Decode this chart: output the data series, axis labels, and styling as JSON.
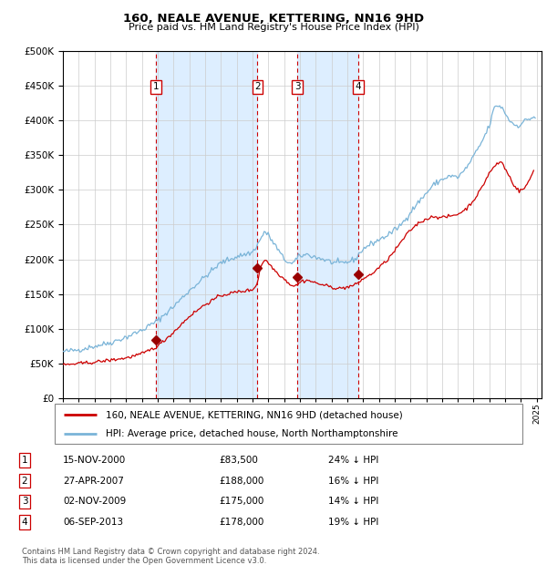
{
  "title": "160, NEALE AVENUE, KETTERING, NN16 9HD",
  "subtitle": "Price paid vs. HM Land Registry's House Price Index (HPI)",
  "legend_line1": "160, NEALE AVENUE, KETTERING, NN16 9HD (detached house)",
  "legend_line2": "HPI: Average price, detached house, North Northamptonshire",
  "footer_line1": "Contains HM Land Registry data © Crown copyright and database right 2024.",
  "footer_line2": "This data is licensed under the Open Government Licence v3.0.",
  "hpi_color": "#7ab4d8",
  "price_color": "#cc0000",
  "vline_color": "#cc0000",
  "bg_shade_color": "#ddeeff",
  "marker_color": "#990000",
  "table_entries": [
    {
      "num": 1,
      "date": "15-NOV-2000",
      "price": "£83,500",
      "pct": "24% ↓ HPI"
    },
    {
      "num": 2,
      "date": "27-APR-2007",
      "price": "£188,000",
      "pct": "16% ↓ HPI"
    },
    {
      "num": 3,
      "date": "02-NOV-2009",
      "price": "£175,000",
      "pct": "14% ↓ HPI"
    },
    {
      "num": 4,
      "date": "06-SEP-2013",
      "price": "£178,000",
      "pct": "19% ↓ HPI"
    }
  ],
  "sale_dates_decimal": [
    2000.875,
    2007.32,
    2009.84,
    2013.68
  ],
  "sale_prices": [
    83500,
    188000,
    175000,
    178000
  ],
  "ylim": [
    0,
    500000
  ],
  "yticks": [
    0,
    50000,
    100000,
    150000,
    200000,
    250000,
    300000,
    350000,
    400000,
    450000,
    500000
  ],
  "xlim_start": 1995.0,
  "xlim_end": 2025.3,
  "hpi_anchors": [
    [
      1995.0,
      67000
    ],
    [
      1996.0,
      70000
    ],
    [
      1997.0,
      75000
    ],
    [
      1998.0,
      80000
    ],
    [
      1999.0,
      88000
    ],
    [
      2000.0,
      98000
    ],
    [
      2001.0,
      112000
    ],
    [
      2002.0,
      132000
    ],
    [
      2003.0,
      155000
    ],
    [
      2004.0,
      175000
    ],
    [
      2005.0,
      195000
    ],
    [
      2006.0,
      204000
    ],
    [
      2007.0,
      210000
    ],
    [
      2007.5,
      228000
    ],
    [
      2007.75,
      240000
    ],
    [
      2008.0,
      235000
    ],
    [
      2008.5,
      218000
    ],
    [
      2009.0,
      200000
    ],
    [
      2009.5,
      193000
    ],
    [
      2010.0,
      205000
    ],
    [
      2010.5,
      207000
    ],
    [
      2011.0,
      203000
    ],
    [
      2011.5,
      200000
    ],
    [
      2012.0,
      196000
    ],
    [
      2012.5,
      194000
    ],
    [
      2013.0,
      196000
    ],
    [
      2013.5,
      200000
    ],
    [
      2014.0,
      215000
    ],
    [
      2014.5,
      222000
    ],
    [
      2015.0,
      228000
    ],
    [
      2015.5,
      234000
    ],
    [
      2016.0,
      242000
    ],
    [
      2016.5,
      252000
    ],
    [
      2017.0,
      268000
    ],
    [
      2017.5,
      282000
    ],
    [
      2018.0,
      295000
    ],
    [
      2018.5,
      308000
    ],
    [
      2019.0,
      315000
    ],
    [
      2019.5,
      320000
    ],
    [
      2020.0,
      318000
    ],
    [
      2020.5,
      330000
    ],
    [
      2021.0,
      348000
    ],
    [
      2021.5,
      368000
    ],
    [
      2022.0,
      392000
    ],
    [
      2022.3,
      418000
    ],
    [
      2022.6,
      422000
    ],
    [
      2022.9,
      415000
    ],
    [
      2023.2,
      402000
    ],
    [
      2023.5,
      395000
    ],
    [
      2023.8,
      392000
    ],
    [
      2024.0,
      395000
    ],
    [
      2024.3,
      400000
    ],
    [
      2024.6,
      403000
    ],
    [
      2024.9,
      405000
    ]
  ],
  "price_anchors": [
    [
      1995.0,
      48000
    ],
    [
      1996.0,
      50000
    ],
    [
      1997.0,
      52000
    ],
    [
      1998.0,
      55000
    ],
    [
      1999.0,
      58000
    ],
    [
      2000.0,
      64000
    ],
    [
      2001.0,
      75000
    ],
    [
      2002.0,
      95000
    ],
    [
      2003.0,
      118000
    ],
    [
      2004.0,
      135000
    ],
    [
      2005.0,
      148000
    ],
    [
      2006.0,
      153000
    ],
    [
      2007.0,
      156000
    ],
    [
      2007.3,
      165000
    ],
    [
      2007.5,
      188000
    ],
    [
      2007.75,
      200000
    ],
    [
      2008.0,
      195000
    ],
    [
      2008.5,
      182000
    ],
    [
      2009.0,
      172000
    ],
    [
      2009.5,
      162000
    ],
    [
      2009.9,
      163000
    ],
    [
      2010.0,
      168000
    ],
    [
      2010.5,
      170000
    ],
    [
      2011.0,
      166000
    ],
    [
      2011.5,
      163000
    ],
    [
      2012.0,
      160000
    ],
    [
      2012.5,
      158000
    ],
    [
      2013.0,
      160000
    ],
    [
      2013.5,
      163000
    ],
    [
      2014.0,
      172000
    ],
    [
      2014.5,
      178000
    ],
    [
      2015.0,
      188000
    ],
    [
      2015.5,
      198000
    ],
    [
      2016.0,
      212000
    ],
    [
      2016.5,
      228000
    ],
    [
      2017.0,
      242000
    ],
    [
      2017.5,
      252000
    ],
    [
      2018.0,
      258000
    ],
    [
      2018.5,
      262000
    ],
    [
      2019.0,
      260000
    ],
    [
      2019.5,
      262000
    ],
    [
      2020.0,
      265000
    ],
    [
      2020.5,
      272000
    ],
    [
      2021.0,
      285000
    ],
    [
      2021.5,
      302000
    ],
    [
      2022.0,
      325000
    ],
    [
      2022.5,
      338000
    ],
    [
      2022.8,
      340000
    ],
    [
      2023.0,
      330000
    ],
    [
      2023.3,
      318000
    ],
    [
      2023.6,
      305000
    ],
    [
      2023.9,
      298000
    ],
    [
      2024.2,
      302000
    ],
    [
      2024.5,
      312000
    ],
    [
      2024.8,
      328000
    ]
  ]
}
